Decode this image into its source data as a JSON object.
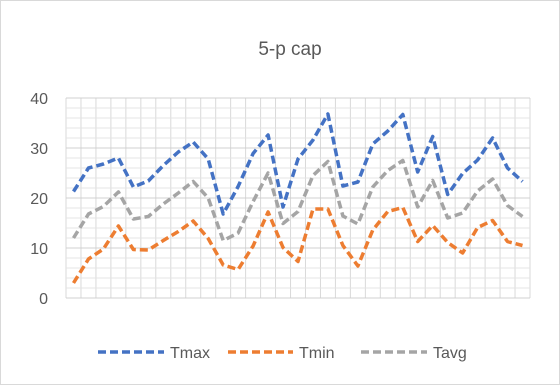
{
  "chart_data": {
    "type": "line",
    "title": "5-p cap",
    "xlabel": "",
    "ylabel": "",
    "ylim": [
      0,
      40
    ],
    "yticks": [
      0,
      10,
      20,
      30,
      40
    ],
    "grid": "both",
    "legend_position": "bottom",
    "x_count": 31,
    "series": [
      {
        "name": "Tmax",
        "color": "#4472C4",
        "values": [
          21.3,
          26.0,
          26.8,
          28.0,
          22.2,
          23.4,
          26.5,
          29.2,
          31.2,
          27.8,
          16.8,
          22.3,
          28.9,
          32.6,
          18.2,
          27.8,
          31.6,
          36.8,
          22.4,
          23.2,
          30.8,
          33.4,
          36.7,
          25.2,
          32.3,
          20.7,
          24.9,
          27.6,
          32.0,
          26.0,
          23.3
        ]
      },
      {
        "name": "Tmin",
        "color": "#ED7D31",
        "values": [
          3.0,
          7.8,
          9.8,
          14.4,
          9.7,
          9.6,
          11.5,
          13.3,
          15.4,
          11.9,
          6.6,
          5.7,
          10.4,
          17.2,
          10.1,
          7.3,
          17.8,
          17.8,
          10.5,
          6.4,
          13.6,
          17.3,
          18.1,
          11.3,
          14.5,
          11.1,
          9.0,
          14.1,
          15.5,
          11.3,
          10.5
        ]
      },
      {
        "name": "Tavg",
        "color": "#A5A5A5",
        "values": [
          12.0,
          16.8,
          18.3,
          21.2,
          15.8,
          16.3,
          18.8,
          21.0,
          23.3,
          20.0,
          11.5,
          13.0,
          19.3,
          25.0,
          14.9,
          17.3,
          24.5,
          27.3,
          16.4,
          14.8,
          22.2,
          25.5,
          27.5,
          18.2,
          23.5,
          16.0,
          17.0,
          21.4,
          23.8,
          18.5,
          16.3
        ]
      }
    ]
  }
}
